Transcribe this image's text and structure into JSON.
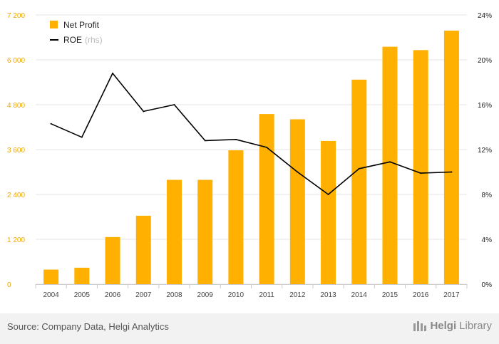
{
  "chart_data": {
    "type": "bar+line",
    "categories": [
      "2004",
      "2005",
      "2006",
      "2007",
      "2008",
      "2009",
      "2010",
      "2011",
      "2012",
      "2013",
      "2014",
      "2015",
      "2016",
      "2017"
    ],
    "series": [
      {
        "name": "Net Profit",
        "kind": "bar",
        "axis": "left",
        "color": "#ffb000",
        "values": [
          390,
          440,
          1260,
          1830,
          2790,
          2790,
          3580,
          4550,
          4410,
          3830,
          5470,
          6350,
          6260,
          6780
        ]
      },
      {
        "name": "ROE",
        "kind": "line",
        "axis": "right",
        "color": "#000000",
        "values": [
          14.3,
          13.1,
          18.8,
          15.4,
          16.0,
          12.8,
          12.9,
          12.2,
          10.0,
          8.0,
          10.3,
          10.9,
          9.9,
          10.0
        ]
      }
    ],
    "y_left": {
      "ylim": [
        0,
        7200
      ],
      "ticks": [
        0,
        1200,
        2400,
        3600,
        4800,
        6000,
        7200
      ],
      "tick_labels": [
        "0",
        "1 200",
        "2 400",
        "3 600",
        "4 800",
        "6 000",
        "7 200"
      ]
    },
    "y_right": {
      "ylim": [
        0,
        24
      ],
      "ticks": [
        0,
        4,
        8,
        12,
        16,
        20,
        24
      ],
      "tick_labels": [
        "0%",
        "4%",
        "8%",
        "12%",
        "16%",
        "20%",
        "24%"
      ]
    },
    "legend": {
      "placement": "top-left",
      "items": [
        {
          "label": "Net Profit"
        },
        {
          "label": "ROE",
          "note": "(rhs)"
        }
      ]
    },
    "grid": "horizontal"
  },
  "footer": {
    "source": "Source: Company Data, Helgi Analytics",
    "brand_bold": "Helgi",
    "brand_light": "Library"
  }
}
